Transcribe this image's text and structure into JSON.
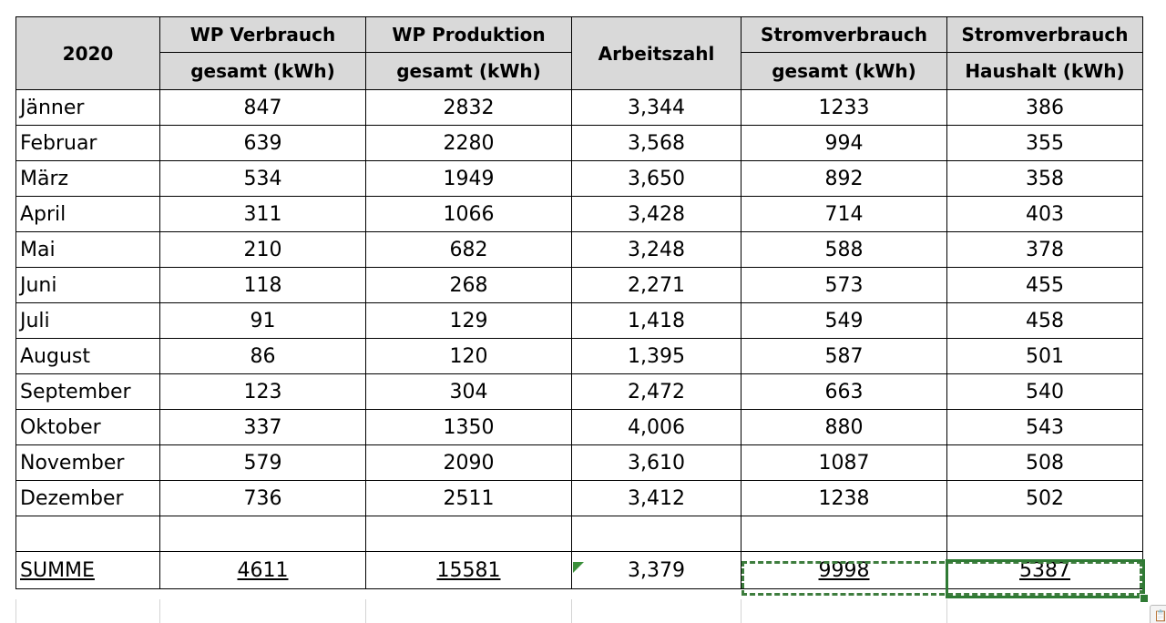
{
  "table": {
    "headers": {
      "year": "2020",
      "wp_verbrauch": [
        "WP Verbrauch",
        "gesamt (kWh)"
      ],
      "wp_produktion": [
        "WP Produktion",
        "gesamt (kWh)"
      ],
      "arbeitszahl": "Arbeitszahl",
      "strom_gesamt": [
        "Stromverbrauch",
        "gesamt (kWh)"
      ],
      "strom_haushalt": [
        "Stromverbrauch",
        "Haushalt (kWh)"
      ]
    },
    "rows": [
      {
        "month": "Jänner",
        "wp_verbrauch": "847",
        "wp_produktion": "2832",
        "arbeitszahl": "3,344",
        "strom_gesamt": "1233",
        "strom_haushalt": "386"
      },
      {
        "month": "Februar",
        "wp_verbrauch": "639",
        "wp_produktion": "2280",
        "arbeitszahl": "3,568",
        "strom_gesamt": "994",
        "strom_haushalt": "355"
      },
      {
        "month": "März",
        "wp_verbrauch": "534",
        "wp_produktion": "1949",
        "arbeitszahl": "3,650",
        "strom_gesamt": "892",
        "strom_haushalt": "358"
      },
      {
        "month": "April",
        "wp_verbrauch": "311",
        "wp_produktion": "1066",
        "arbeitszahl": "3,428",
        "strom_gesamt": "714",
        "strom_haushalt": "403"
      },
      {
        "month": "Mai",
        "wp_verbrauch": "210",
        "wp_produktion": "682",
        "arbeitszahl": "3,248",
        "strom_gesamt": "588",
        "strom_haushalt": "378"
      },
      {
        "month": "Juni",
        "wp_verbrauch": "118",
        "wp_produktion": "268",
        "arbeitszahl": "2,271",
        "strom_gesamt": "573",
        "strom_haushalt": "455"
      },
      {
        "month": "Juli",
        "wp_verbrauch": "91",
        "wp_produktion": "129",
        "arbeitszahl": "1,418",
        "strom_gesamt": "549",
        "strom_haushalt": "458"
      },
      {
        "month": "August",
        "wp_verbrauch": "86",
        "wp_produktion": "120",
        "arbeitszahl": "1,395",
        "strom_gesamt": "587",
        "strom_haushalt": "501"
      },
      {
        "month": "September",
        "wp_verbrauch": "123",
        "wp_produktion": "304",
        "arbeitszahl": "2,472",
        "strom_gesamt": "663",
        "strom_haushalt": "540"
      },
      {
        "month": "Oktober",
        "wp_verbrauch": "337",
        "wp_produktion": "1350",
        "arbeitszahl": "4,006",
        "strom_gesamt": "880",
        "strom_haushalt": "543"
      },
      {
        "month": "November",
        "wp_verbrauch": "579",
        "wp_produktion": "2090",
        "arbeitszahl": "3,610",
        "strom_gesamt": "1087",
        "strom_haushalt": "508"
      },
      {
        "month": "Dezember",
        "wp_verbrauch": "736",
        "wp_produktion": "2511",
        "arbeitszahl": "3,412",
        "strom_gesamt": "1238",
        "strom_haushalt": "502"
      }
    ],
    "summary": {
      "label": "SUMME",
      "wp_verbrauch": "4611",
      "wp_produktion": "15581",
      "arbeitszahl": "3,379",
      "strom_gesamt": "9998",
      "strom_haushalt": "5387"
    }
  },
  "colors": {
    "header_bg": "#d9d9d9",
    "selection_green": "#2f7a34"
  },
  "icons": {
    "paste_options": "paste-options-icon"
  }
}
